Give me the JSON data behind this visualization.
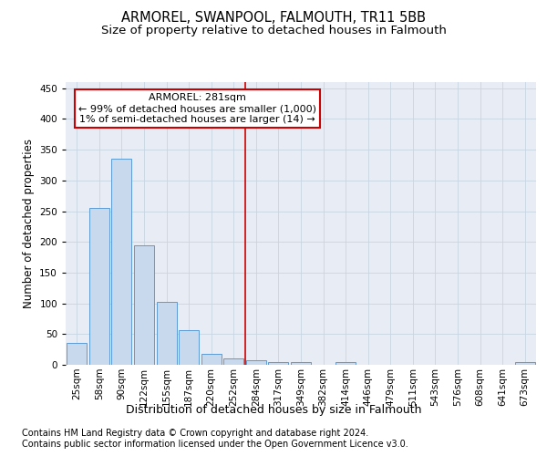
{
  "title": "ARMOREL, SWANPOOL, FALMOUTH, TR11 5BB",
  "subtitle": "Size of property relative to detached houses in Falmouth",
  "xlabel": "Distribution of detached houses by size in Falmouth",
  "ylabel": "Number of detached properties",
  "footer1": "Contains HM Land Registry data © Crown copyright and database right 2024.",
  "footer2": "Contains public sector information licensed under the Open Government Licence v3.0.",
  "bin_labels": [
    "25sqm",
    "58sqm",
    "90sqm",
    "122sqm",
    "155sqm",
    "187sqm",
    "220sqm",
    "252sqm",
    "284sqm",
    "317sqm",
    "349sqm",
    "382sqm",
    "414sqm",
    "446sqm",
    "479sqm",
    "511sqm",
    "543sqm",
    "576sqm",
    "608sqm",
    "641sqm",
    "673sqm"
  ],
  "bar_values": [
    35,
    255,
    335,
    195,
    103,
    57,
    18,
    10,
    8,
    5,
    4,
    0,
    4,
    0,
    0,
    0,
    0,
    0,
    0,
    0,
    4
  ],
  "bar_color": "#c9d9ed",
  "bar_edge_color": "#5b9bd5",
  "bar_edge_width": 0.7,
  "vline_x": 7.5,
  "vline_color": "#cc0000",
  "annotation_line1": "ARMOREL: 281sqm",
  "annotation_line2": "← 99% of detached houses are smaller (1,000)",
  "annotation_line3": "1% of semi-detached houses are larger (14) →",
  "annotation_box_color": "#cc0000",
  "ylim": [
    0,
    460
  ],
  "yticks": [
    0,
    50,
    100,
    150,
    200,
    250,
    300,
    350,
    400,
    450
  ],
  "grid_color": "#c8d4e3",
  "bg_color": "#e8edf5",
  "title_fontsize": 10.5,
  "subtitle_fontsize": 9.5,
  "ylabel_fontsize": 8.5,
  "xlabel_fontsize": 9,
  "tick_fontsize": 7.5,
  "footer_fontsize": 7,
  "ann_fontsize": 8
}
